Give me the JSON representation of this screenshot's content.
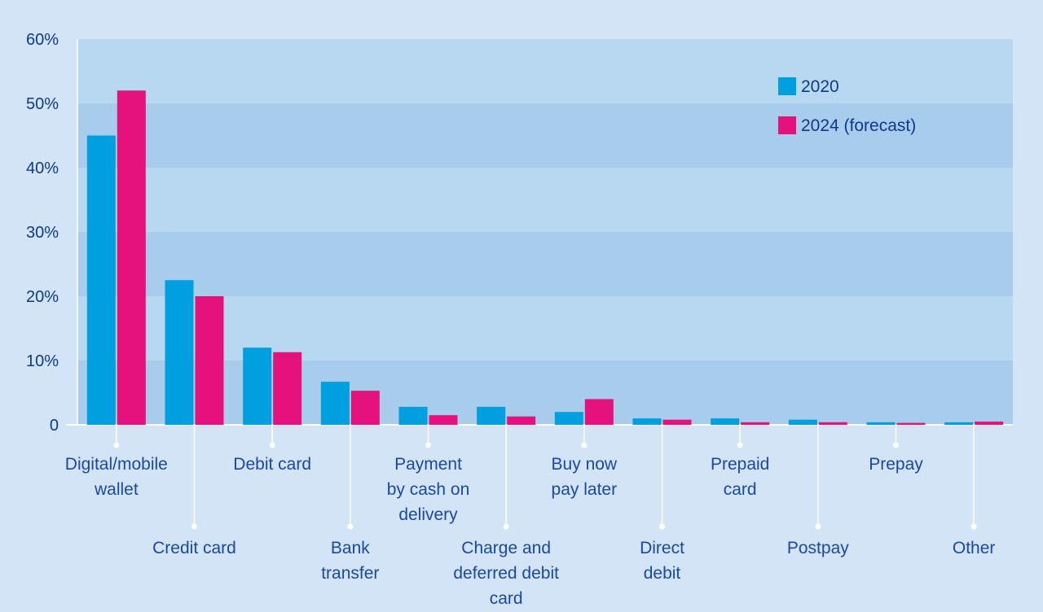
{
  "chart_data": {
    "type": "bar",
    "title": "",
    "xlabel": "",
    "ylabel": "",
    "ylim": [
      0,
      60
    ],
    "y_ticks": [
      {
        "value": 0,
        "label": "0"
      },
      {
        "value": 10,
        "label": "10%"
      },
      {
        "value": 20,
        "label": "20%"
      },
      {
        "value": 30,
        "label": "30%"
      },
      {
        "value": 40,
        "label": "40%"
      },
      {
        "value": 50,
        "label": "50%"
      },
      {
        "value": 60,
        "label": "60%"
      }
    ],
    "legend_position": "top-right",
    "grid": "alternating horizontal bands",
    "categories": [
      {
        "lines": [
          "Digital/mobile",
          "wallet"
        ],
        "row": "upper"
      },
      {
        "lines": [
          "Credit card"
        ],
        "row": "lower"
      },
      {
        "lines": [
          "Debit card"
        ],
        "row": "upper"
      },
      {
        "lines": [
          "Bank",
          "transfer"
        ],
        "row": "lower"
      },
      {
        "lines": [
          "Payment",
          "by cash on",
          "delivery"
        ],
        "row": "upper"
      },
      {
        "lines": [
          "Charge and",
          "deferred debit",
          "card"
        ],
        "row": "lower"
      },
      {
        "lines": [
          "Buy now",
          "pay later"
        ],
        "row": "upper"
      },
      {
        "lines": [
          "Direct",
          "debit"
        ],
        "row": "lower"
      },
      {
        "lines": [
          "Prepaid",
          "card"
        ],
        "row": "upper"
      },
      {
        "lines": [
          "Postpay"
        ],
        "row": "lower"
      },
      {
        "lines": [
          "Prepay"
        ],
        "row": "upper"
      },
      {
        "lines": [
          "Other"
        ],
        "row": "lower"
      }
    ],
    "series": [
      {
        "name": "2020",
        "color": "#009fdf",
        "values": [
          45,
          22.5,
          12,
          6.7,
          2.8,
          2.8,
          2,
          1,
          1,
          0.8,
          0.4,
          0.4
        ]
      },
      {
        "name": "2024 (forecast)",
        "color": "#e5127d",
        "values": [
          52,
          20,
          11.3,
          5.3,
          1.5,
          1.3,
          4,
          0.8,
          0.4,
          0.4,
          0.3,
          0.5
        ]
      }
    ]
  },
  "colors": {
    "background": "#d2e4f5",
    "band_light": "#b8d7f1",
    "band_dark": "#a8cdec",
    "text": "#1a48a6",
    "connector": "#ffffff"
  }
}
